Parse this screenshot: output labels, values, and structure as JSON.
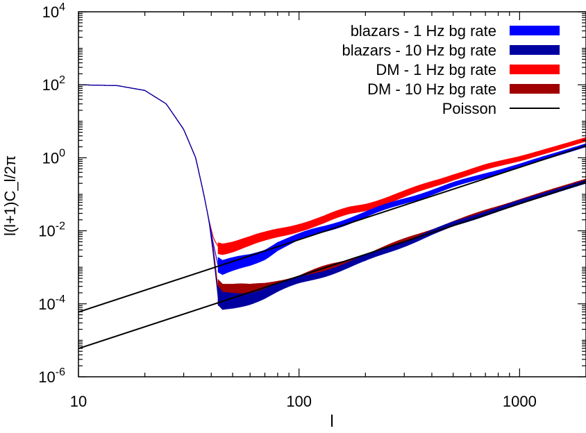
{
  "chart_data": {
    "type": "line",
    "xlabel": "l",
    "ylabel": "l(l+1)C_l/2π",
    "xscale": "log",
    "yscale": "log",
    "xlim": [
      10,
      2000
    ],
    "ylim": [
      1e-06,
      10000
    ],
    "grid": false,
    "legend_position": "top-right",
    "x_ticks": [
      {
        "value": 10,
        "label": "10"
      },
      {
        "value": 100,
        "label": "100"
      },
      {
        "value": 1000,
        "label": "1000"
      }
    ],
    "y_ticks": [
      {
        "value": 1e-06,
        "base": "10",
        "exp": "-6"
      },
      {
        "value": 0.0001,
        "base": "10",
        "exp": "-4"
      },
      {
        "value": 0.01,
        "base": "10",
        "exp": "-2"
      },
      {
        "value": 1,
        "base": "10",
        "exp": "0"
      },
      {
        "value": 100,
        "base": "10",
        "exp": "2"
      },
      {
        "value": 10000,
        "base": "10",
        "exp": "4"
      }
    ],
    "series": [
      {
        "name": "blazars - 1 Hz bg rate",
        "color": "#0000ff",
        "style": "band",
        "points": [
          [
            10,
            100
          ],
          [
            15,
            95
          ],
          [
            20,
            70
          ],
          [
            25,
            30
          ],
          [
            30,
            6
          ],
          [
            34,
            1
          ],
          [
            37,
            0.1
          ],
          [
            39,
            0.02
          ],
          [
            41,
            0.004
          ],
          [
            43,
            0.0011
          ],
          [
            45,
            0.0009
          ],
          [
            50,
            0.0011
          ],
          [
            60,
            0.0016
          ],
          [
            70,
            0.0024
          ],
          [
            80,
            0.004
          ],
          [
            100,
            0.0065
          ],
          [
            130,
            0.011
          ],
          [
            170,
            0.02
          ],
          [
            200,
            0.028
          ],
          [
            300,
            0.065
          ],
          [
            500,
            0.18
          ],
          [
            700,
            0.33
          ],
          [
            1000,
            0.6
          ],
          [
            1500,
            1.3
          ],
          [
            2000,
            2.2
          ]
        ],
        "band_halfwidth_dex": [
          [
            43,
            0.2
          ],
          [
            60,
            0.15
          ],
          [
            100,
            0.08
          ],
          [
            2000,
            0.04
          ]
        ]
      },
      {
        "name": "blazars - 10 Hz bg rate",
        "color": "#0000a0",
        "style": "band",
        "points": [
          [
            10,
            100
          ],
          [
            15,
            95
          ],
          [
            20,
            70
          ],
          [
            25,
            30
          ],
          [
            30,
            6
          ],
          [
            34,
            1
          ],
          [
            37,
            0.1
          ],
          [
            39,
            0.02
          ],
          [
            41,
            0.002
          ],
          [
            43,
            0.00015
          ],
          [
            45,
            0.00011
          ],
          [
            50,
            0.00012
          ],
          [
            60,
            0.00015
          ],
          [
            70,
            0.0002
          ],
          [
            80,
            0.00027
          ],
          [
            100,
            0.00042
          ],
          [
            130,
            0.0007
          ],
          [
            170,
            0.0012
          ],
          [
            200,
            0.0017
          ],
          [
            300,
            0.0045
          ],
          [
            500,
            0.015
          ],
          [
            700,
            0.03
          ],
          [
            1000,
            0.06
          ],
          [
            1500,
            0.13
          ],
          [
            2000,
            0.22
          ]
        ],
        "band_halfwidth_dex": [
          [
            43,
            0.25
          ],
          [
            60,
            0.15
          ],
          [
            100,
            0.08
          ],
          [
            2000,
            0.04
          ]
        ]
      },
      {
        "name": "DM - 1 Hz bg rate",
        "color": "#ff0000",
        "style": "band",
        "points": [
          [
            10,
            100
          ],
          [
            15,
            95
          ],
          [
            20,
            70
          ],
          [
            25,
            30
          ],
          [
            30,
            6
          ],
          [
            34,
            1
          ],
          [
            37,
            0.1
          ],
          [
            39,
            0.02
          ],
          [
            41,
            0.006
          ],
          [
            43,
            0.0037
          ],
          [
            45,
            0.0035
          ],
          [
            50,
            0.0039
          ],
          [
            60,
            0.005
          ],
          [
            70,
            0.0065
          ],
          [
            80,
            0.0085
          ],
          [
            100,
            0.013
          ],
          [
            130,
            0.02
          ],
          [
            170,
            0.035
          ],
          [
            200,
            0.045
          ],
          [
            300,
            0.1
          ],
          [
            500,
            0.3
          ],
          [
            700,
            0.55
          ],
          [
            1000,
            0.95
          ],
          [
            1500,
            1.9
          ],
          [
            2000,
            3.2
          ]
        ],
        "band_halfwidth_dex": [
          [
            43,
            0.15
          ],
          [
            60,
            0.12
          ],
          [
            100,
            0.1
          ],
          [
            2000,
            0.05
          ]
        ]
      },
      {
        "name": "DM - 10 Hz bg rate",
        "color": "#a00000",
        "style": "band",
        "points": [
          [
            10,
            100
          ],
          [
            15,
            95
          ],
          [
            20,
            70
          ],
          [
            25,
            30
          ],
          [
            30,
            6
          ],
          [
            34,
            1
          ],
          [
            37,
            0.1
          ],
          [
            39,
            0.02
          ],
          [
            41,
            0.003
          ],
          [
            43,
            0.00022
          ],
          [
            45,
            0.00017
          ],
          [
            50,
            0.00018
          ],
          [
            60,
            0.00022
          ],
          [
            70,
            0.00027
          ],
          [
            80,
            0.00035
          ],
          [
            100,
            0.0005
          ],
          [
            130,
            0.00085
          ],
          [
            170,
            0.0014
          ],
          [
            200,
            0.002
          ],
          [
            300,
            0.005
          ],
          [
            500,
            0.016
          ],
          [
            700,
            0.032
          ],
          [
            1000,
            0.065
          ],
          [
            1500,
            0.14
          ],
          [
            2000,
            0.24
          ]
        ],
        "band_halfwidth_dex": [
          [
            43,
            0.35
          ],
          [
            60,
            0.15
          ],
          [
            100,
            0.08
          ],
          [
            2000,
            0.04
          ]
        ]
      },
      {
        "name": "Poisson",
        "color": "#000000",
        "style": "line",
        "lines": [
          {
            "k": 5.4e-07
          },
          {
            "k": 5.4e-08
          }
        ]
      }
    ]
  }
}
